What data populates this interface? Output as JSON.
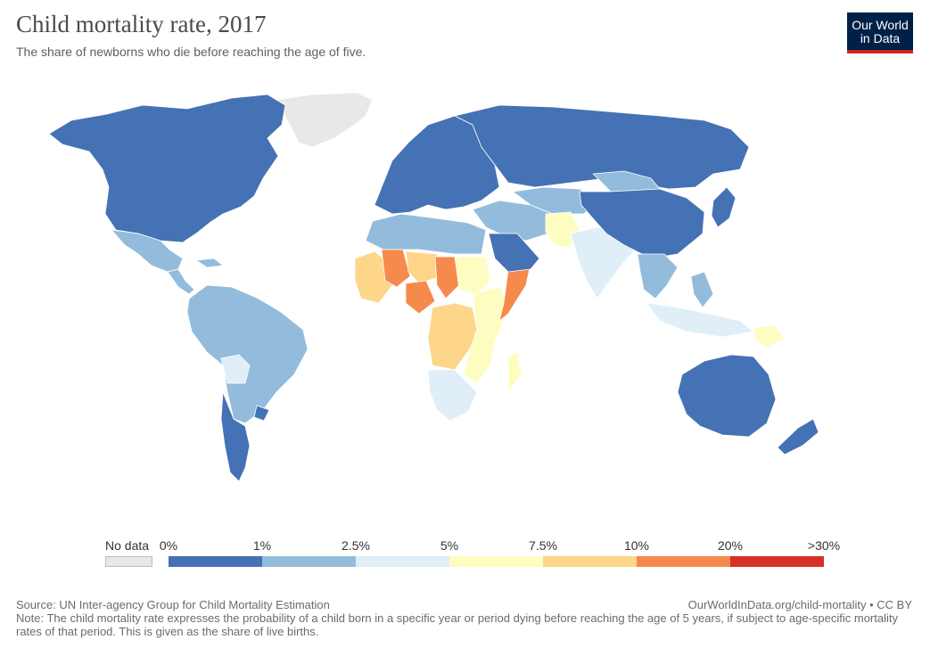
{
  "header": {
    "title": "Child mortality rate, 2017",
    "subtitle": "The share of newborns who die before reaching the age of five."
  },
  "logo": {
    "line1": "Our World",
    "line2": "in Data"
  },
  "legend": {
    "no_data_label": "No data",
    "no_data_color": "#e8e8e8",
    "ticks": [
      "0%",
      "1%",
      "2.5%",
      "5%",
      "7.5%",
      "10%",
      "20%",
      ">30%"
    ],
    "bin_colors": [
      "#4472b4",
      "#93bcdc",
      "#dfeef7",
      "#fefdc1",
      "#fdd68a",
      "#f68a4c",
      "#d73027"
    ]
  },
  "footer": {
    "source": "Source: UN Inter-agency Group for Child Mortality Estimation",
    "url": "OurWorldInData.org/child-mortality • CC BY",
    "note": "Note: The child mortality rate expresses the probability of a child born in a specific year or period dying before reaching the age of 5 years, if subject to age-specific mortality rates of that period. This is given as the share of live births."
  },
  "map_regions": [
    {
      "name": "greenland",
      "bin": -1
    },
    {
      "name": "north-america",
      "bin": 0
    },
    {
      "name": "mexico",
      "bin": 1
    },
    {
      "name": "central-america",
      "bin": 1
    },
    {
      "name": "south-america",
      "bin": 1
    },
    {
      "name": "bolivia",
      "bin": 2
    },
    {
      "name": "chile-argentina-south",
      "bin": 0
    },
    {
      "name": "europe",
      "bin": 0
    },
    {
      "name": "russia",
      "bin": 0
    },
    {
      "name": "north-africa",
      "bin": 1
    },
    {
      "name": "sahel-west",
      "bin": 4
    },
    {
      "name": "mali-niger",
      "bin": 5
    },
    {
      "name": "nigeria-chad",
      "bin": 5
    },
    {
      "name": "sudan",
      "bin": 3
    },
    {
      "name": "somalia",
      "bin": 5
    },
    {
      "name": "central-africa",
      "bin": 4
    },
    {
      "name": "east-africa",
      "bin": 3
    },
    {
      "name": "southern-africa",
      "bin": 2
    },
    {
      "name": "middle-east",
      "bin": 1
    },
    {
      "name": "saudi-arabia",
      "bin": 0
    },
    {
      "name": "central-asia",
      "bin": 1
    },
    {
      "name": "pakistan-afghanistan",
      "bin": 3
    },
    {
      "name": "india",
      "bin": 2
    },
    {
      "name": "china",
      "bin": 0
    },
    {
      "name": "mongolia",
      "bin": 1
    },
    {
      "name": "southeast-asia",
      "bin": 1
    },
    {
      "name": "indonesia",
      "bin": 2
    },
    {
      "name": "papua-new-guinea",
      "bin": 3
    },
    {
      "name": "australia",
      "bin": 0
    },
    {
      "name": "new-zealand",
      "bin": 0
    },
    {
      "name": "japan",
      "bin": 0
    }
  ]
}
